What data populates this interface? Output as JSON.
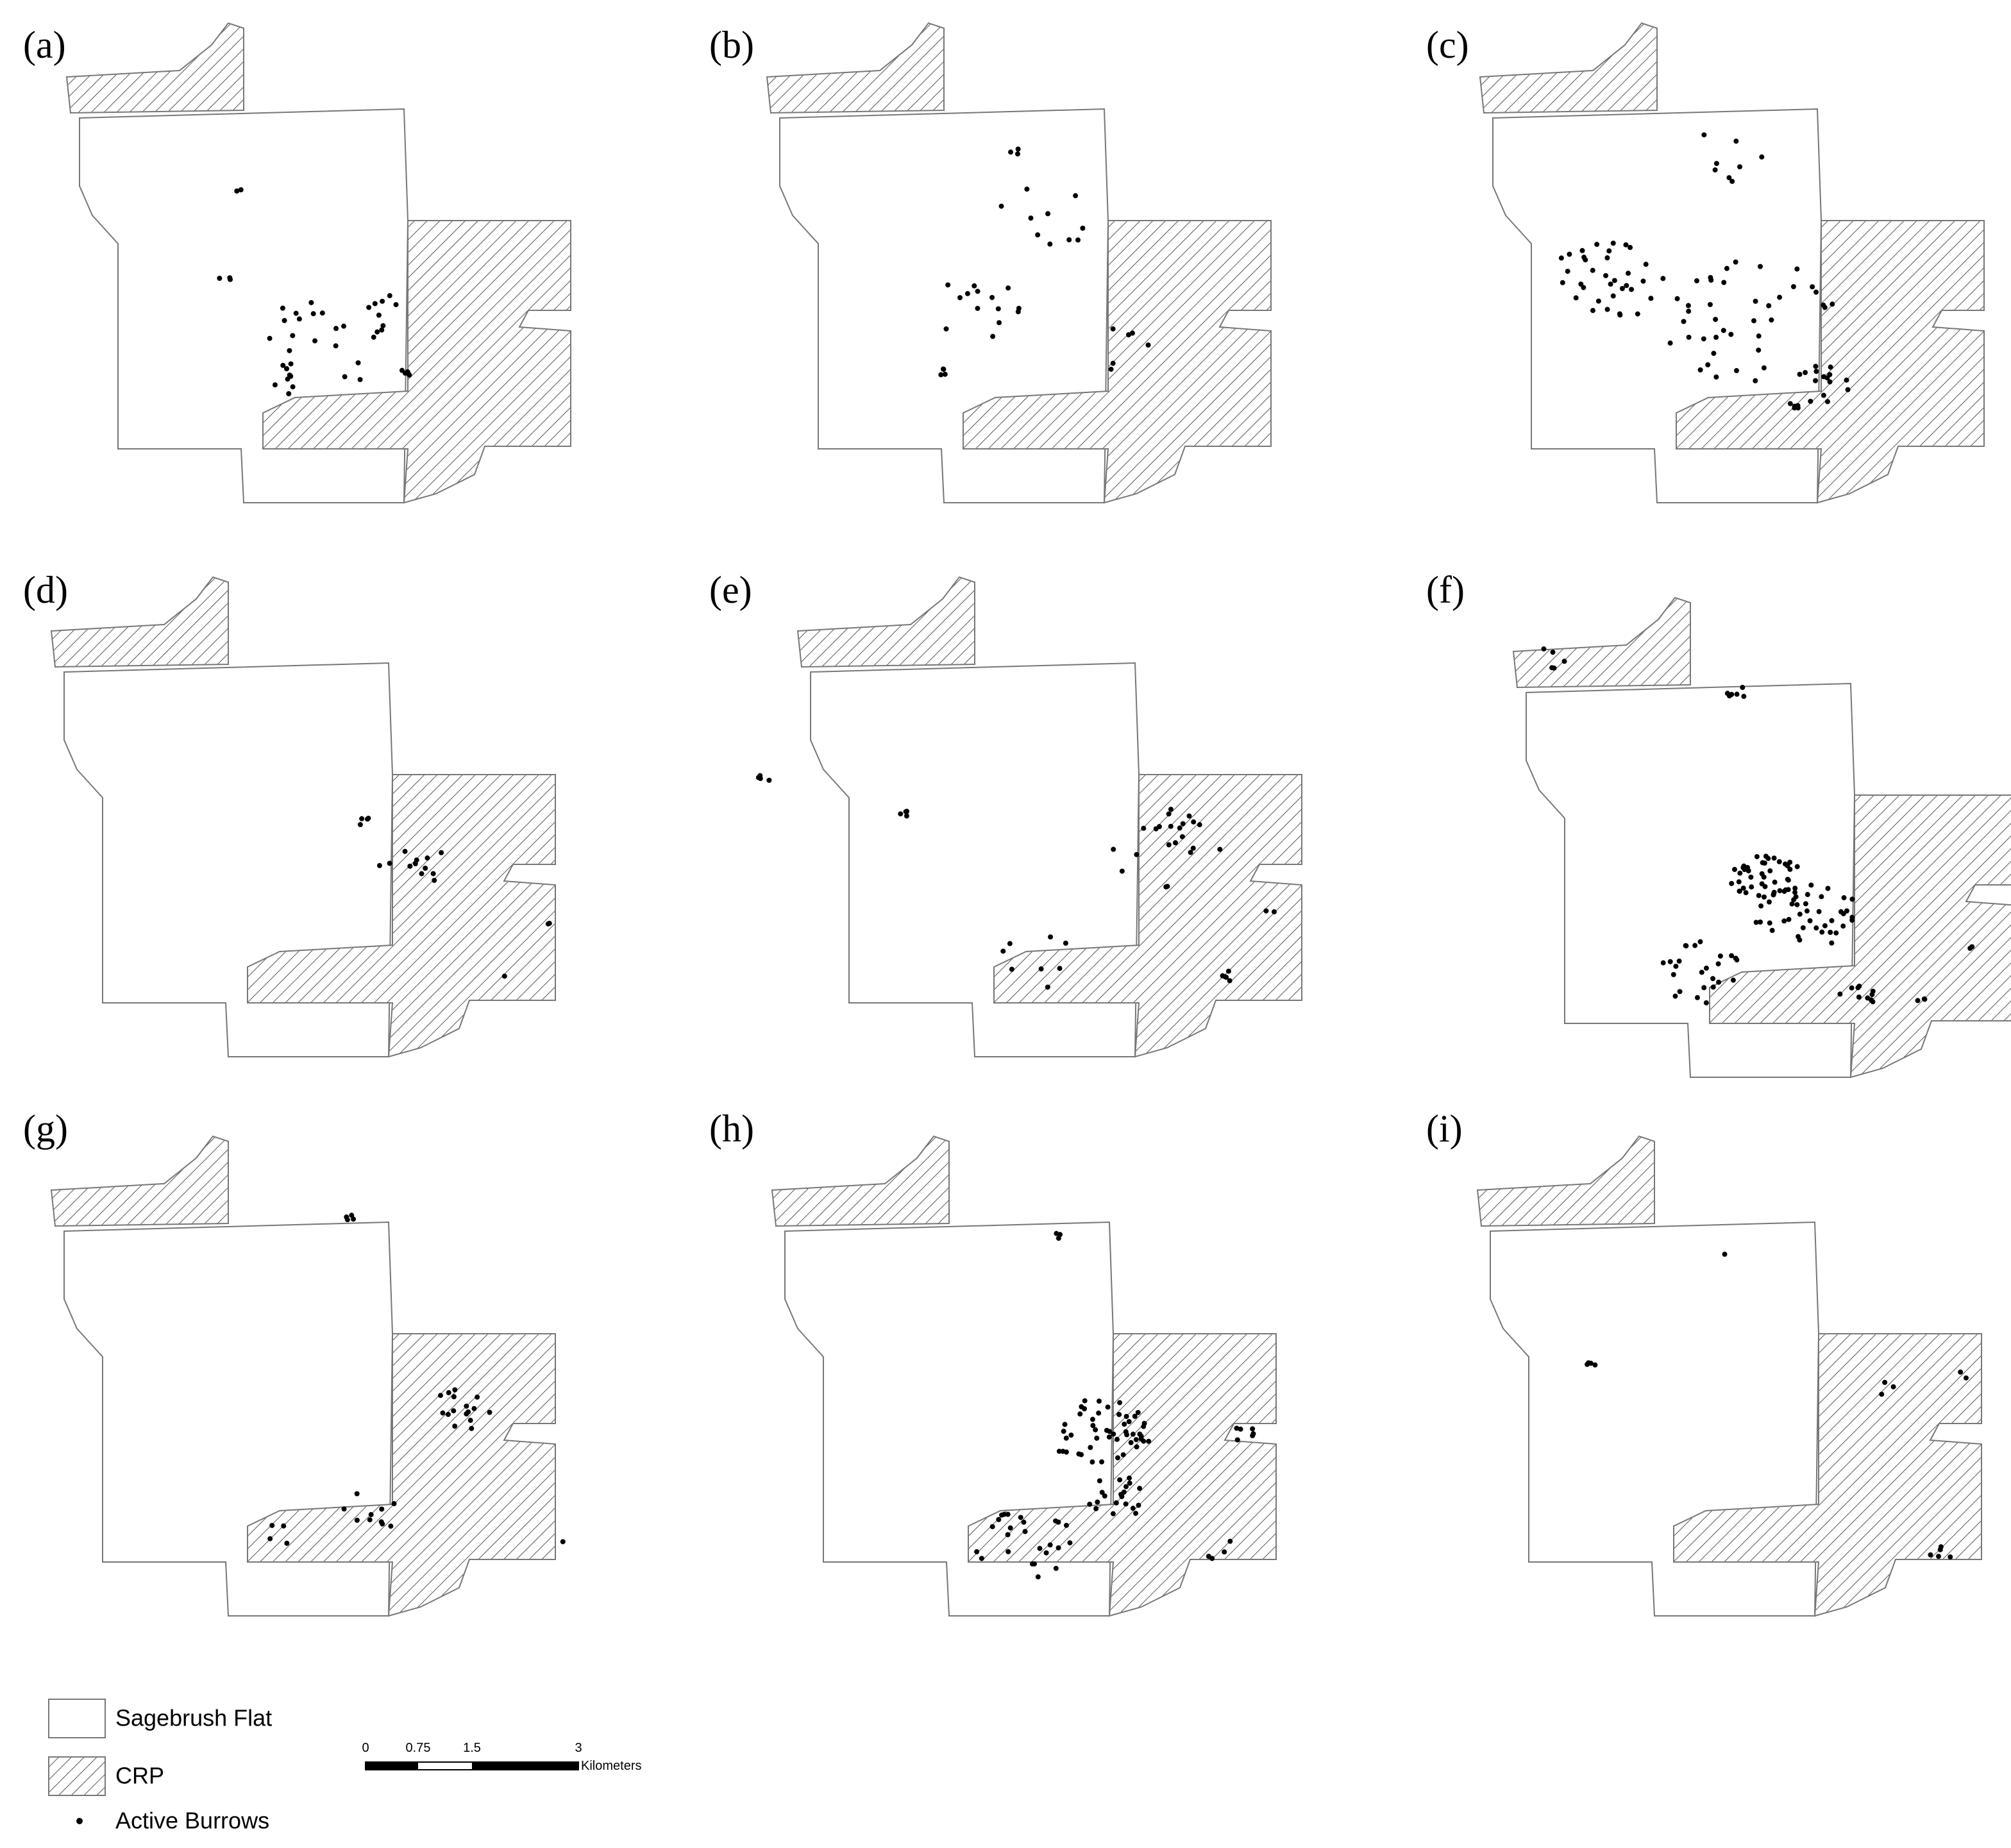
{
  "panels": [
    {
      "label": "(a)"
    },
    {
      "label": "(b)"
    },
    {
      "label": "(c)"
    },
    {
      "label": "(d)"
    },
    {
      "label": "(e)"
    },
    {
      "label": "(f)"
    },
    {
      "label": "(g)"
    },
    {
      "label": "(h)"
    },
    {
      "label": "(i)"
    }
  ],
  "legend": {
    "items": [
      "Sagebrush Flat",
      "CRP",
      "Active Burrows"
    ]
  },
  "scale_bar": {
    "ticks": [
      "0",
      "0.75",
      "1.5",
      "3"
    ],
    "unit": "Kilometers"
  }
}
